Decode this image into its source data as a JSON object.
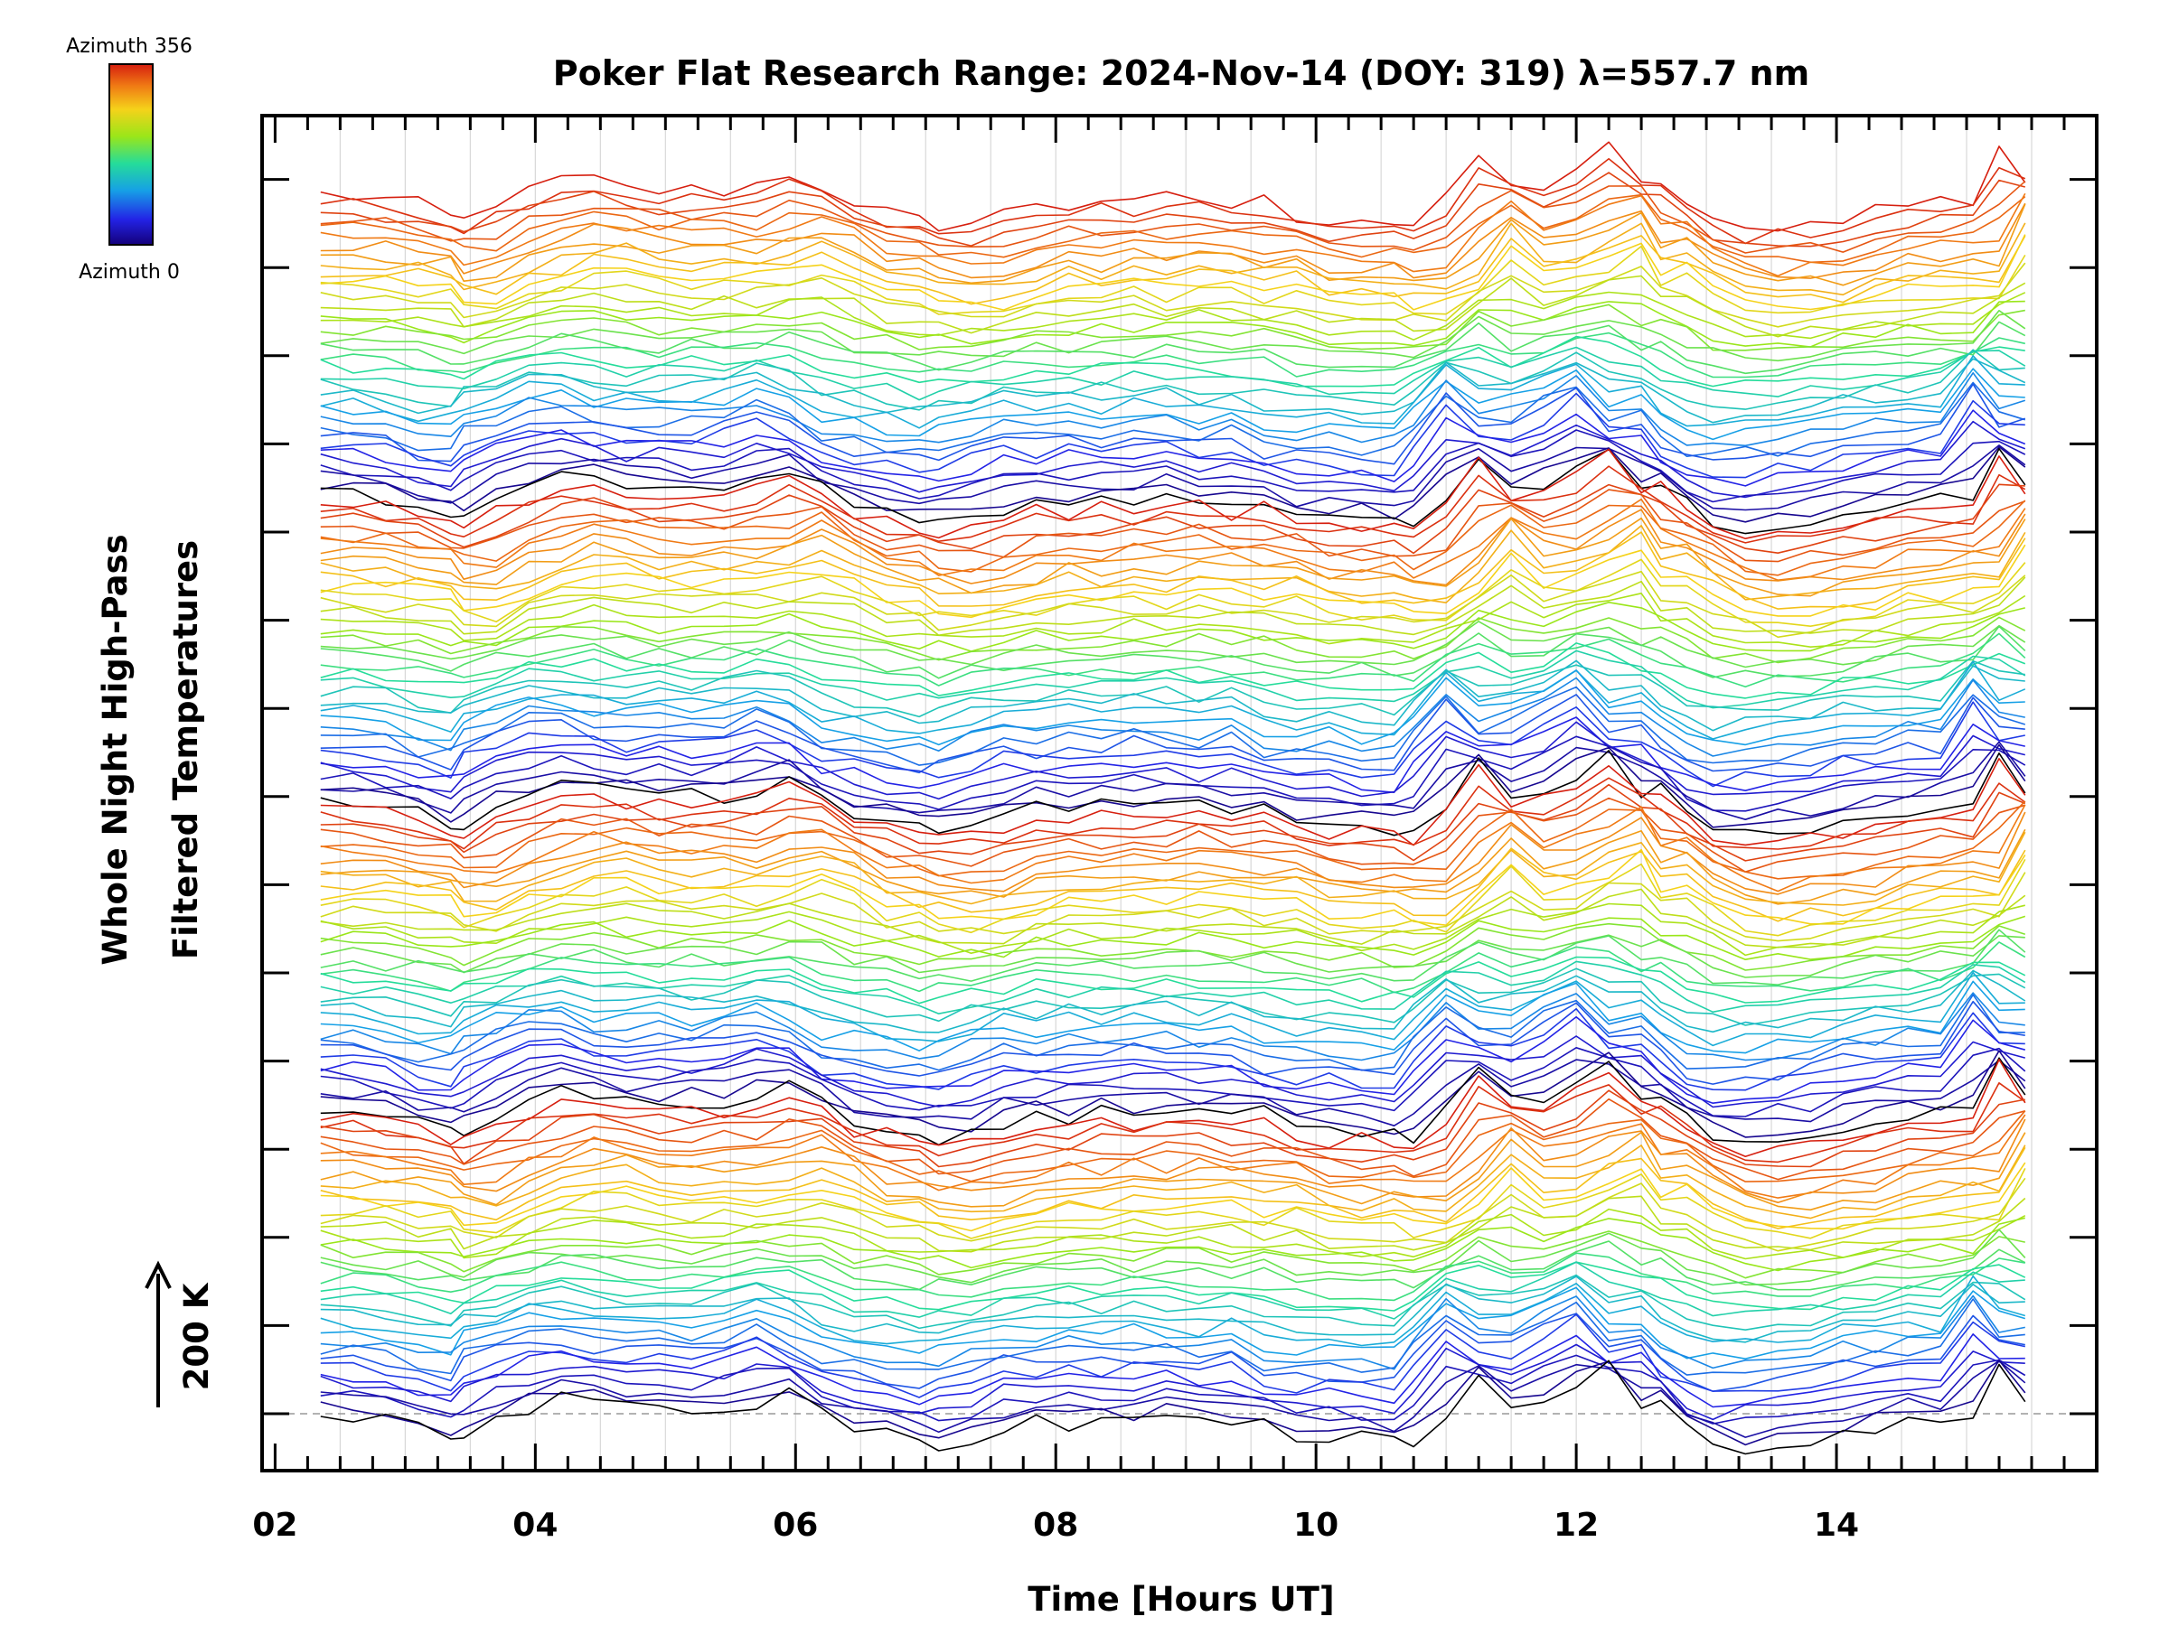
{
  "chart_data": {
    "type": "line",
    "title": "Poker Flat Research Range: 2024-Nov-14 (DOY: 319) λ=557.7 nm",
    "xlabel": "Time [Hours UT]",
    "ylabel_lines": [
      "Whole Night High-Pass",
      "Filtered Temperatures"
    ],
    "scale_label": "200 K",
    "scale_value_K": 200,
    "x_tick_labels": [
      "02",
      "04",
      "06",
      "08",
      "10",
      "12",
      "14"
    ],
    "xlim": [
      1.9,
      16.0
    ],
    "x_major_ticks": [
      2,
      4,
      6,
      8,
      10,
      12,
      14
    ],
    "x_minor_step": 0.25,
    "grid": "vertical-dotted",
    "colorbar": {
      "top_label": "Azimuth 356",
      "bottom_label": "Azimuth 0",
      "colormap": [
        "#14007a",
        "#2323e6",
        "#16a0e6",
        "#25dc9a",
        "#9ae619",
        "#f5d21a",
        "#f07a14",
        "#d61f0f"
      ]
    },
    "series_count": 144,
    "offset_groups": 4,
    "traces_per_group": 36,
    "time_range": [
      2.35,
      15.45
    ],
    "x": [
      2.35,
      2.6,
      2.85,
      3.1,
      3.35,
      3.45,
      3.7,
      3.95,
      4.2,
      4.45,
      4.7,
      4.95,
      5.2,
      5.45,
      5.7,
      5.95,
      6.2,
      6.45,
      6.7,
      6.95,
      7.1,
      7.35,
      7.6,
      7.85,
      8.1,
      8.35,
      8.6,
      8.85,
      9.1,
      9.35,
      9.6,
      9.85,
      10.1,
      10.35,
      10.6,
      10.75,
      11.0,
      11.25,
      11.5,
      11.75,
      12.0,
      12.25,
      12.5,
      12.65,
      12.85,
      13.05,
      13.3,
      13.55,
      13.8,
      14.05,
      14.3,
      14.55,
      14.8,
      15.05,
      15.25,
      15.45
    ],
    "reference_series": {
      "name": "Azimuth 0",
      "values_K": [
        0,
        -5,
        -10,
        -18,
        -45,
        -50,
        -15,
        5,
        30,
        28,
        10,
        5,
        10,
        5,
        20,
        40,
        15,
        -30,
        -35,
        -50,
        -60,
        -55,
        -35,
        -15,
        -25,
        -10,
        -20,
        -5,
        -10,
        -25,
        -10,
        -45,
        -50,
        -45,
        -55,
        -60,
        -10,
        75,
        10,
        15,
        50,
        90,
        15,
        25,
        -20,
        -55,
        -70,
        -60,
        -55,
        -45,
        -25,
        -20,
        -10,
        -15,
        95,
        25
      ]
    }
  }
}
